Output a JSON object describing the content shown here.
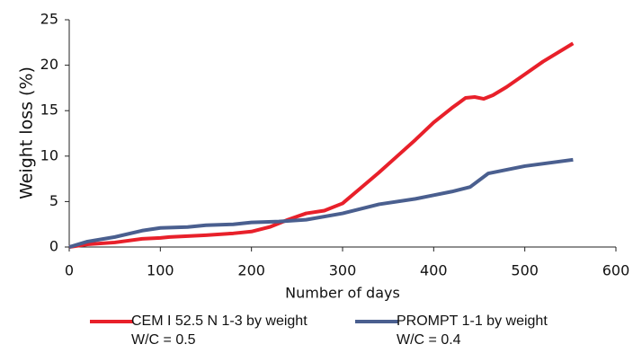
{
  "chart_data": {
    "type": "line",
    "x_label": "Number of days",
    "y_label": "Weight loss (%)",
    "xlim": [
      0,
      600
    ],
    "xticks": [
      0,
      100,
      200,
      300,
      400,
      500,
      600
    ],
    "ylim": [
      0,
      25
    ],
    "yticks": [
      0,
      5,
      10,
      15,
      20,
      25
    ],
    "grid": false,
    "legend": "bottom",
    "series": [
      {
        "name": "CEM I 52.5 N 1-3 by weight\nW/C = 0.5",
        "color": "#e8202a",
        "x": [
          0,
          20,
          50,
          80,
          100,
          110,
          150,
          180,
          200,
          220,
          240,
          260,
          280,
          300,
          320,
          340,
          360,
          380,
          400,
          420,
          435,
          445,
          455,
          465,
          480,
          500,
          520,
          553
        ],
        "values": [
          0,
          0.3,
          0.5,
          0.9,
          1.0,
          1.1,
          1.3,
          1.5,
          1.7,
          2.2,
          3.0,
          3.7,
          4.0,
          4.8,
          6.5,
          8.2,
          10.0,
          11.8,
          13.7,
          15.3,
          16.4,
          16.5,
          16.3,
          16.7,
          17.6,
          19.0,
          20.4,
          22.4
        ]
      },
      {
        "name": "PROMPT 1-1 by weight\nW/C = 0.4",
        "color": "#4a5f8f",
        "x": [
          0,
          20,
          50,
          80,
          100,
          130,
          150,
          180,
          200,
          230,
          260,
          300,
          340,
          380,
          400,
          420,
          440,
          460,
          500,
          553
        ],
        "values": [
          0,
          0.6,
          1.1,
          1.8,
          2.1,
          2.2,
          2.4,
          2.5,
          2.7,
          2.8,
          3.0,
          3.7,
          4.7,
          5.3,
          5.7,
          6.1,
          6.6,
          8.1,
          8.9,
          9.6
        ]
      }
    ]
  }
}
